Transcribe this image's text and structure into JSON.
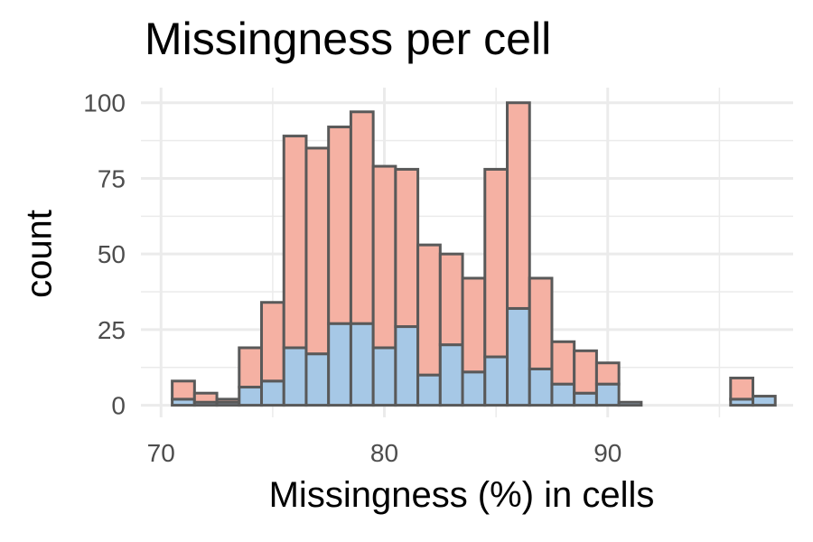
{
  "chart_data": {
    "type": "bar",
    "title": "Missingness per cell",
    "xlabel": "Missingness (%) in cells",
    "ylabel": "count",
    "xlim": [
      70,
      97.5
    ],
    "ylim": [
      0,
      100
    ],
    "x_ticks": [
      70,
      80,
      90
    ],
    "y_ticks": [
      0,
      25,
      50,
      75,
      100
    ],
    "grid": true,
    "stacked": true,
    "bin_width": 1,
    "bin_start": [
      70.5,
      71.5,
      72.5,
      73.5,
      74.5,
      75.5,
      76.5,
      77.5,
      78.5,
      79.5,
      80.5,
      81.5,
      82.5,
      83.5,
      84.5,
      85.5,
      86.5,
      87.5,
      88.5,
      89.5,
      90.5,
      91.5,
      92.5,
      93.5,
      94.5,
      95.5,
      96.5
    ],
    "series": [
      {
        "values": [
          2,
          1,
          1,
          6,
          8,
          19,
          17,
          27,
          27,
          19,
          26,
          10,
          20,
          11,
          16,
          32,
          12,
          7,
          4,
          7,
          1,
          0,
          0,
          0,
          0,
          2,
          3
        ],
        "color": "#a6c8e6"
      },
      {
        "values": [
          6,
          3,
          1,
          13,
          26,
          70,
          68,
          65,
          70,
          60,
          52,
          43,
          30,
          31,
          62,
          68,
          30,
          14,
          14,
          7,
          0,
          0,
          0,
          0,
          0,
          7,
          0
        ],
        "color": "#f5b1a3"
      }
    ],
    "edge_color": "#595959"
  }
}
